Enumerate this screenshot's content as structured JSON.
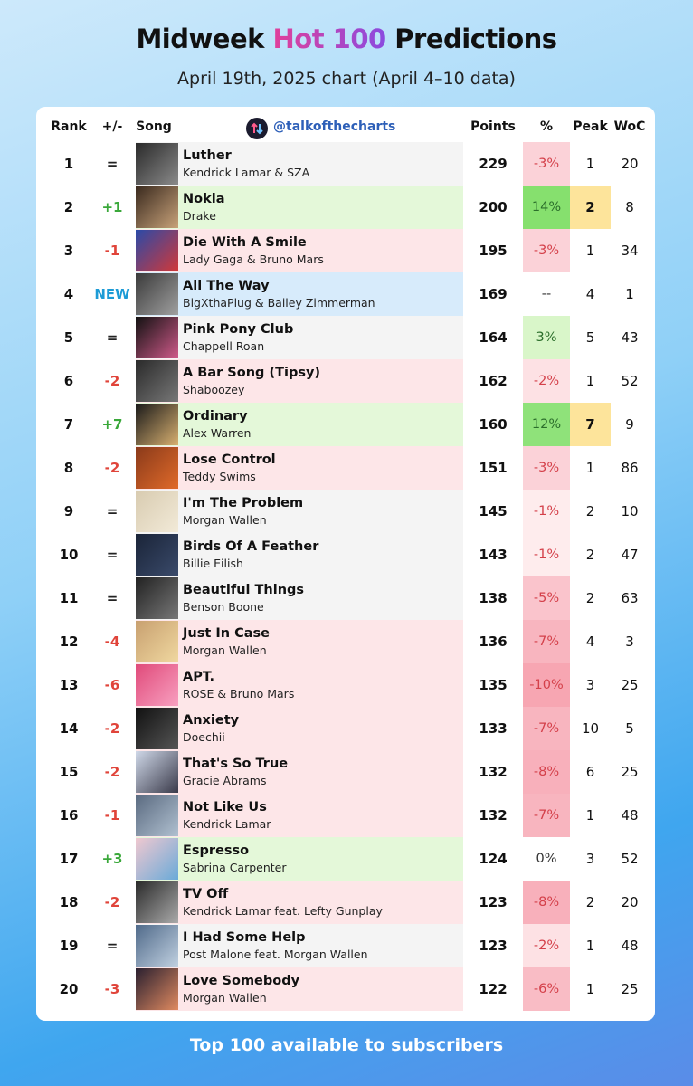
{
  "header": {
    "title_start": "Midweek ",
    "title_highlight": "Hot 100",
    "title_end": " Predictions",
    "subtitle": "April 19th, 2025 chart (April 4–10 data)"
  },
  "table": {
    "columns": {
      "rank": "Rank",
      "change": "+/-",
      "song": "Song",
      "handle": "@talkofthecharts",
      "points": "Points",
      "pct": "%",
      "peak": "Peak",
      "woc": "WoC"
    },
    "rows": [
      {
        "rank": 1,
        "change": "=",
        "status": "same",
        "title": "Luther",
        "artist": "Kendrick Lamar & SZA",
        "points": 229,
        "pct": "-3%",
        "pct_tone": "neg",
        "pct_bg": "#fbd2d8",
        "peak": 1,
        "woc": 20
      },
      {
        "rank": 2,
        "change": "+1",
        "status": "up",
        "title": "Nokia",
        "artist": "Drake",
        "points": 200,
        "pct": "14%",
        "pct_tone": "pos",
        "pct_bg": "#86e06e",
        "peak": 2,
        "peak_bg": "#fde49b",
        "woc": 8
      },
      {
        "rank": 3,
        "change": "-1",
        "status": "down",
        "title": "Die With A Smile",
        "artist": "Lady Gaga & Bruno Mars",
        "points": 195,
        "pct": "-3%",
        "pct_tone": "neg",
        "pct_bg": "#fbd2d8",
        "peak": 1,
        "woc": 34
      },
      {
        "rank": 4,
        "change": "NEW",
        "status": "new",
        "title": "All The Way",
        "artist": "BigXthaPlug & Bailey Zimmerman",
        "points": 169,
        "pct": "--",
        "pct_tone": "neutral",
        "peak": 4,
        "woc": 1
      },
      {
        "rank": 5,
        "change": "=",
        "status": "same",
        "title": "Pink Pony Club",
        "artist": "Chappell Roan",
        "points": 164,
        "pct": "3%",
        "pct_tone": "pos",
        "pct_bg": "#d9f6c9",
        "peak": 5,
        "woc": 43
      },
      {
        "rank": 6,
        "change": "-2",
        "status": "down",
        "title": "A Bar Song (Tipsy)",
        "artist": "Shaboozey",
        "points": 162,
        "pct": "-2%",
        "pct_tone": "neg",
        "pct_bg": "#fde1e4",
        "peak": 1,
        "woc": 52
      },
      {
        "rank": 7,
        "change": "+7",
        "status": "up",
        "title": "Ordinary",
        "artist": "Alex Warren",
        "points": 160,
        "pct": "12%",
        "pct_tone": "pos",
        "pct_bg": "#8fe27a",
        "peak": 7,
        "peak_bg": "#fde49b",
        "woc": 9
      },
      {
        "rank": 8,
        "change": "-2",
        "status": "down",
        "title": "Lose Control",
        "artist": "Teddy Swims",
        "points": 151,
        "pct": "-3%",
        "pct_tone": "neg",
        "pct_bg": "#fbd2d8",
        "peak": 1,
        "woc": 86
      },
      {
        "rank": 9,
        "change": "=",
        "status": "same",
        "title": "I'm The Problem",
        "artist": "Morgan Wallen",
        "points": 145,
        "pct": "-1%",
        "pct_tone": "neg",
        "pct_bg": "#feeced",
        "peak": 2,
        "woc": 10
      },
      {
        "rank": 10,
        "change": "=",
        "status": "same",
        "title": "Birds Of A Feather",
        "artist": "Billie Eilish",
        "points": 143,
        "pct": "-1%",
        "pct_tone": "neg",
        "pct_bg": "#feeced",
        "peak": 2,
        "woc": 47
      },
      {
        "rank": 11,
        "change": "=",
        "status": "same",
        "title": "Beautiful Things",
        "artist": "Benson Boone",
        "points": 138,
        "pct": "-5%",
        "pct_tone": "neg",
        "pct_bg": "#fac4cc",
        "peak": 2,
        "woc": 63
      },
      {
        "rank": 12,
        "change": "-4",
        "status": "down",
        "title": "Just In Case",
        "artist": "Morgan Wallen",
        "points": 136,
        "pct": "-7%",
        "pct_tone": "neg",
        "pct_bg": "#f8b5bf",
        "peak": 4,
        "woc": 3
      },
      {
        "rank": 13,
        "change": "-6",
        "status": "down",
        "title": "APT.",
        "artist": "ROSE & Bruno Mars",
        "points": 135,
        "pct": "-10%",
        "pct_tone": "neg",
        "pct_bg": "#f7a6b2",
        "peak": 3,
        "woc": 25
      },
      {
        "rank": 14,
        "change": "-2",
        "status": "down",
        "title": "Anxiety",
        "artist": "Doechii",
        "points": 133,
        "pct": "-7%",
        "pct_tone": "neg",
        "pct_bg": "#f8b5bf",
        "peak": 10,
        "woc": 5
      },
      {
        "rank": 15,
        "change": "-2",
        "status": "down",
        "title": "That's So True",
        "artist": "Gracie Abrams",
        "points": 132,
        "pct": "-8%",
        "pct_tone": "neg",
        "pct_bg": "#f8b0bb",
        "peak": 6,
        "woc": 25
      },
      {
        "rank": 16,
        "change": "-1",
        "status": "down",
        "title": "Not Like Us",
        "artist": "Kendrick Lamar",
        "points": 132,
        "pct": "-7%",
        "pct_tone": "neg",
        "pct_bg": "#f8b5bf",
        "peak": 1,
        "woc": 48
      },
      {
        "rank": 17,
        "change": "+3",
        "status": "up",
        "title": "Espresso",
        "artist": "Sabrina Carpenter",
        "points": 124,
        "pct": "0%",
        "pct_tone": "neutral",
        "peak": 3,
        "woc": 52
      },
      {
        "rank": 18,
        "change": "-2",
        "status": "down",
        "title": "TV Off",
        "artist": "Kendrick Lamar feat. Lefty Gunplay",
        "points": 123,
        "pct": "-8%",
        "pct_tone": "neg",
        "pct_bg": "#f8b0bb",
        "peak": 2,
        "woc": 20
      },
      {
        "rank": 19,
        "change": "=",
        "status": "same",
        "title": "I Had Some Help",
        "artist": "Post Malone feat. Morgan Wallen",
        "points": 123,
        "pct": "-2%",
        "pct_tone": "neg",
        "pct_bg": "#fde1e4",
        "peak": 1,
        "woc": 48
      },
      {
        "rank": 20,
        "change": "-3",
        "status": "down",
        "title": "Love Somebody",
        "artist": "Morgan Wallen",
        "points": 122,
        "pct": "-6%",
        "pct_tone": "neg",
        "pct_bg": "#f9bcc5",
        "peak": 1,
        "woc": 25
      }
    ]
  },
  "footer": {
    "note": "Top 100 available to subscribers"
  }
}
